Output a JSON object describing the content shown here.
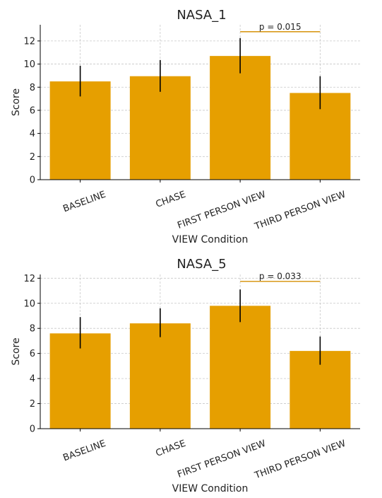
{
  "colors": {
    "bar": "#e69f00",
    "error": "#000000",
    "grid": "#c8c8c8",
    "axis": "#000000",
    "bracket": "#d99a1a"
  },
  "chart_data": [
    {
      "type": "bar",
      "title": "NASA_1",
      "xlabel": "VIEW Condition",
      "ylabel": "Score",
      "categories": [
        "BASELINE",
        "CHASE",
        "FIRST PERSON VIEW",
        "THIRD PERSON VIEW"
      ],
      "values": [
        8.5,
        8.95,
        10.7,
        7.5
      ],
      "error_low": [
        7.2,
        7.6,
        9.2,
        6.1
      ],
      "error_high": [
        9.85,
        10.35,
        12.25,
        8.95
      ],
      "ylim": [
        0,
        13.4
      ],
      "yticks": [
        0,
        2,
        4,
        6,
        8,
        10,
        12
      ],
      "grid": true,
      "annotation": {
        "text": "p = 0.015",
        "from": "FIRST PERSON VIEW",
        "to": "THIRD PERSON VIEW",
        "y": 12.8
      }
    },
    {
      "type": "bar",
      "title": "NASA_5",
      "xlabel": "VIEW Condition",
      "ylabel": "Score",
      "categories": [
        "BASELINE",
        "CHASE",
        "FIRST PERSON VIEW",
        "THIRD PERSON VIEW"
      ],
      "values": [
        7.6,
        8.4,
        9.8,
        6.2
      ],
      "error_low": [
        6.4,
        7.3,
        8.5,
        5.1
      ],
      "error_high": [
        8.9,
        9.6,
        11.1,
        7.35
      ],
      "ylim": [
        0,
        12.3
      ],
      "yticks": [
        0,
        2,
        4,
        6,
        8,
        10,
        12
      ],
      "grid": true,
      "annotation": {
        "text": "p = 0.033",
        "from": "FIRST PERSON VIEW",
        "to": "THIRD PERSON VIEW",
        "y": 11.75
      }
    }
  ]
}
